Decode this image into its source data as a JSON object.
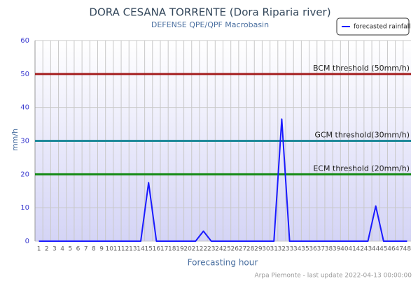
{
  "chart_data": {
    "type": "line",
    "title": "DORA CESANA TORRENTE (Dora Riparia river)",
    "subtitle": "DEFENSE QPE/QPF Macrobasin",
    "x_label": "Forecasting hour",
    "y_label": "mm/h",
    "footer": "Arpa Piemonte - last update 2022-04-13 00:00:00",
    "categories": [
      "1",
      "2",
      "3",
      "4",
      "5",
      "6",
      "7",
      "8",
      "9",
      "10",
      "11",
      "12",
      "13",
      "14",
      "15",
      "16",
      "17",
      "18",
      "19",
      "20",
      "21",
      "22",
      "23",
      "24",
      "25",
      "26",
      "27",
      "28",
      "29",
      "30",
      "31",
      "32",
      "33",
      "34",
      "35",
      "36",
      "37",
      "38",
      "39",
      "40",
      "41",
      "42",
      "43",
      "44",
      "45",
      "46",
      "47",
      "48"
    ],
    "series": [
      {
        "name": "forecasted rainfall",
        "color": "#1a1aff",
        "values": [
          0,
          0,
          0,
          0,
          0,
          0,
          0,
          0,
          0,
          0,
          0,
          0,
          0,
          0,
          17.5,
          0,
          0,
          0,
          0,
          0,
          0,
          3,
          0,
          0,
          0,
          0,
          0,
          0,
          0,
          0,
          0,
          36.5,
          0,
          0,
          0,
          0,
          0,
          0,
          0,
          0,
          0,
          0,
          0,
          10.5,
          0,
          0,
          0,
          0
        ]
      }
    ],
    "thresholds": [
      {
        "label": "BCM threshold (50mm/h)",
        "value": 50,
        "color": "#a52020"
      },
      {
        "label": "GCM threshold(30mm/h)",
        "value": 30,
        "color": "#1f8a9a"
      },
      {
        "label": "ECM threshold (20mm/h)",
        "value": 20,
        "color": "#138a13"
      }
    ],
    "ylim": [
      0,
      60
    ],
    "yticks": [
      0,
      10,
      20,
      30,
      40,
      50,
      60
    ],
    "grid": true
  }
}
